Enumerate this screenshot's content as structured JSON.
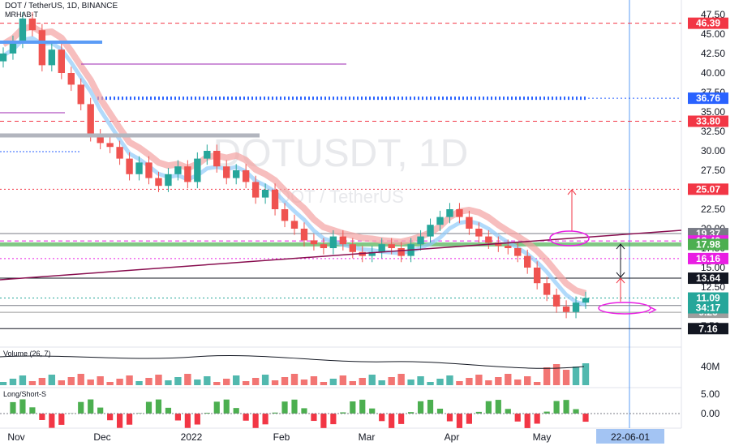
{
  "header": {
    "symbol": "DOT / TetherUS, 1D, BINANCE",
    "indicator": "MRHAB-T"
  },
  "watermark": {
    "ticker": "DOTUSDT, 1D",
    "name": "DOT / TetherUS"
  },
  "panes": {
    "volume_label": "Volume (26, 7)",
    "volume_axis": "40M",
    "ls_label": "Long/Short-S",
    "ls_axis": [
      "5.00",
      "0.00"
    ]
  },
  "chart_data": {
    "type": "candlestick",
    "symbol": "DOTUSDT",
    "timeframe": "1D",
    "exchange": "BINANCE",
    "x_labels": [
      "Nov",
      "Dec",
      "2022",
      "Feb",
      "Mar",
      "Apr",
      "May"
    ],
    "x_cursor_label": "22-06-01",
    "y_ticks": [
      "47.50",
      "45.00",
      "42.50",
      "40.00",
      "37.50",
      "35.00",
      "32.50",
      "30.00",
      "27.50",
      "25.00",
      "22.50",
      "20.00",
      "17.50",
      "15.00",
      "12.50",
      "10.00",
      "7.50"
    ],
    "ylim": [
      5.5,
      49
    ],
    "close_approx": [
      42.5,
      44,
      47,
      45.5,
      41,
      43,
      40,
      38.5,
      36,
      32,
      31,
      30.5,
      29,
      27,
      28.5,
      26.5,
      25.5,
      27,
      28,
      26,
      29,
      30,
      28,
      26.5,
      27.5,
      26,
      24,
      25,
      22.5,
      21,
      20,
      18.5,
      18,
      17.5,
      19,
      18,
      17,
      16.5,
      17,
      18,
      17.5,
      16.5,
      18,
      19,
      20.5,
      21.5,
      22.5,
      21.5,
      20,
      19,
      18.2,
      17.8,
      17.5,
      16.5,
      15,
      13,
      11.5,
      10,
      9.3,
      10.5,
      11.1
    ],
    "levels": [
      {
        "value": 46.39,
        "label": "46.39",
        "color": "#f23645",
        "style": "dashed"
      },
      {
        "value": 36.76,
        "label": "36.76",
        "color": "#2962ff",
        "style": "dotted"
      },
      {
        "value": 33.8,
        "label": "33.80",
        "color": "#f23645",
        "style": "dashed"
      },
      {
        "value": 25.07,
        "label": "25.07",
        "color": "#f23645",
        "style": "dotted"
      },
      {
        "value": 19.37,
        "label": "19.37",
        "color": "#787b86",
        "style": "solid"
      },
      {
        "value": 18.42,
        "label": "18.42",
        "color": "#e91ee3",
        "style": "dashed"
      },
      {
        "value": 17.98,
        "label": "17.98",
        "color": "#4caf50",
        "style": "solid"
      },
      {
        "value": 16.16,
        "label": "16.16",
        "color": "#e91ee3",
        "style": "dotted"
      },
      {
        "value": 13.64,
        "label": "13.64",
        "color": "#131722",
        "style": "solid"
      },
      {
        "value": 10.13,
        "label": "10.13",
        "color": "#787b86",
        "style": "solid"
      },
      {
        "value": 9.26,
        "label": "9.26",
        "color": "#9e9e9e",
        "style": "solid"
      },
      {
        "value": 7.16,
        "label": "7.16",
        "color": "#131722",
        "style": "solid"
      }
    ],
    "last_price": {
      "value": 11.09,
      "label": "11.09",
      "countdown": "34:17",
      "color": "#26a69a"
    }
  },
  "colors": {
    "up": "#26a69a",
    "down": "#ef5350",
    "ma_red": "#f4a3a3",
    "ma_blue": "#90caf9",
    "trendline": "#880e4f"
  }
}
